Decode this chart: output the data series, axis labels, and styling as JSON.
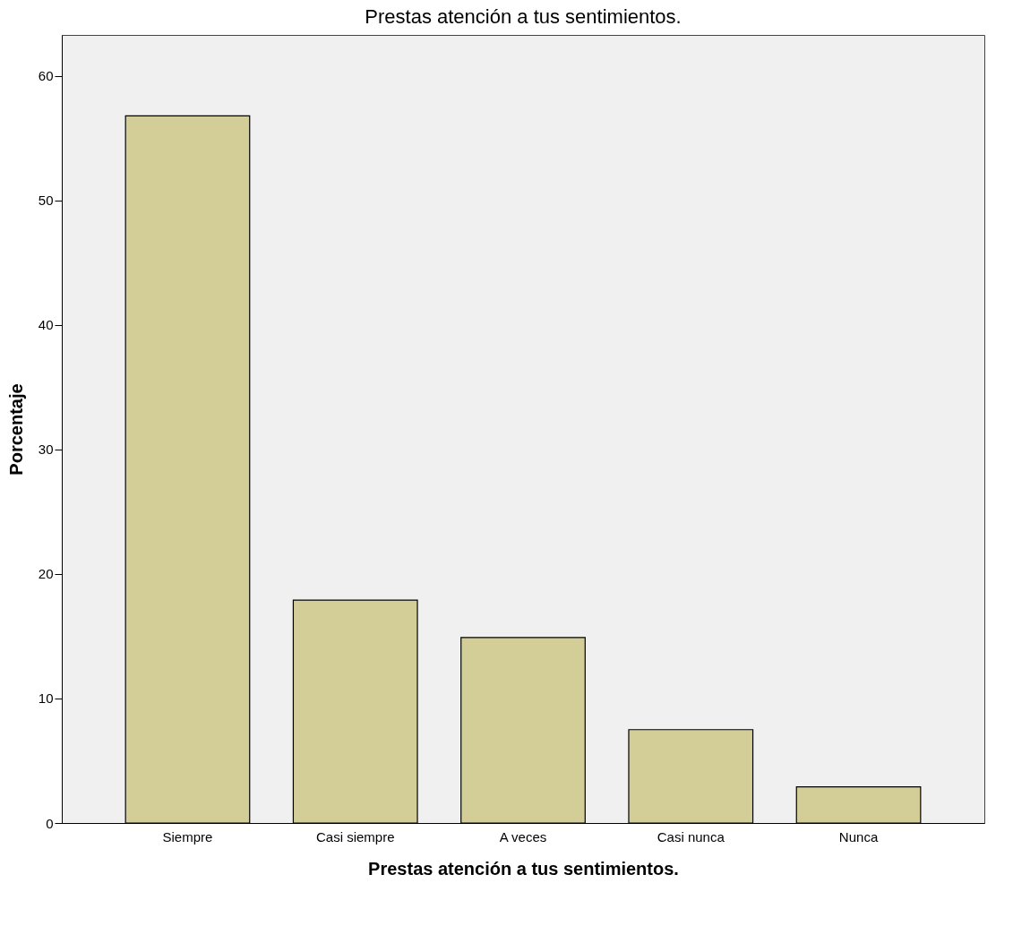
{
  "chart_data": {
    "type": "bar",
    "title": "Prestas atención a tus sentimientos.",
    "xlabel": "Prestas atención a tus sentimientos.",
    "ylabel": "Porcentaje",
    "categories": [
      "Siempre",
      "Casi siempre",
      "A veces",
      "Casi nunca",
      "Nunca"
    ],
    "values": [
      56.8,
      17.9,
      14.9,
      7.5,
      2.9
    ],
    "color": "#d3ce97",
    "ylim": [
      0,
      63.3
    ],
    "yticks": [
      0,
      10,
      20,
      30,
      40,
      50,
      60
    ],
    "grid": false
  }
}
